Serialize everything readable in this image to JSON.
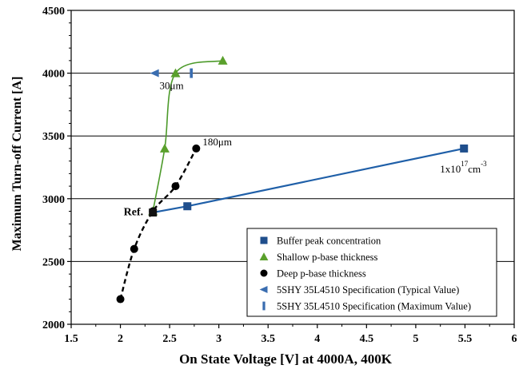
{
  "chart_data": {
    "type": "scatter",
    "xlabel": "On State Voltage [V] at 4000A, 400K",
    "ylabel": "Maximum Turn-off Current [A]",
    "xlim": [
      1.5,
      6
    ],
    "ylim": [
      2000,
      4500
    ],
    "x_ticks": [
      "1.5",
      "2",
      "2.5",
      "3",
      "3.5",
      "4",
      "4.5",
      "5",
      "5.5",
      "6"
    ],
    "y_ticks": [
      "2000",
      "2500",
      "3000",
      "3500",
      "4000",
      "4500"
    ],
    "grid": "horizontal",
    "legend_position": "bottom-right",
    "colors": {
      "buffer": "#1f4e8c",
      "buffer_line": "#1f5fa8",
      "shallow": "#5aa02c",
      "shallow_line": "#4c9a2a",
      "deep": "#000000",
      "spec_typ": "#3a6db0",
      "spec_max": "#3a6db0"
    },
    "series": [
      {
        "name": "Buffer peak concentration",
        "marker": "square",
        "line": "solid",
        "points": [
          [
            2.33,
            2890
          ],
          [
            2.68,
            2940
          ],
          [
            5.49,
            3400
          ]
        ]
      },
      {
        "name": "Shallow p-base thickness",
        "marker": "triangle",
        "line": "solid-curve",
        "points": [
          [
            2.33,
            2900
          ],
          [
            2.45,
            3400
          ],
          [
            2.56,
            4000
          ],
          [
            3.04,
            4100
          ]
        ]
      },
      {
        "name": "Deep p-base thickness",
        "marker": "circle",
        "line": "dashed-curve",
        "points": [
          [
            2.0,
            2200
          ],
          [
            2.14,
            2600
          ],
          [
            2.33,
            2900
          ],
          [
            2.56,
            3100
          ],
          [
            2.77,
            3400
          ]
        ]
      },
      {
        "name": "5SHY 35L4510 Specification (Typical Value)",
        "marker": "left-triangle",
        "points": [
          [
            2.35,
            4000
          ]
        ]
      },
      {
        "name": "5SHY 35L4510 Specification (Maximum Value)",
        "marker": "vertical-bar",
        "points": [
          [
            2.72,
            4000
          ]
        ]
      }
    ],
    "annotations": [
      {
        "id": "ref",
        "text": "Ref.",
        "x": 2.33,
        "y": 2900
      },
      {
        "id": "a30",
        "text": "30μm",
        "x": 2.56,
        "y": 4000
      },
      {
        "id": "a180",
        "text": "180μm",
        "x": 2.77,
        "y": 3400
      },
      {
        "id": "conc",
        "text": "1x10",
        "sup1": "17",
        "mid": "cm",
        "sup2": "-3",
        "x": 5.49,
        "y": 3400
      }
    ]
  }
}
